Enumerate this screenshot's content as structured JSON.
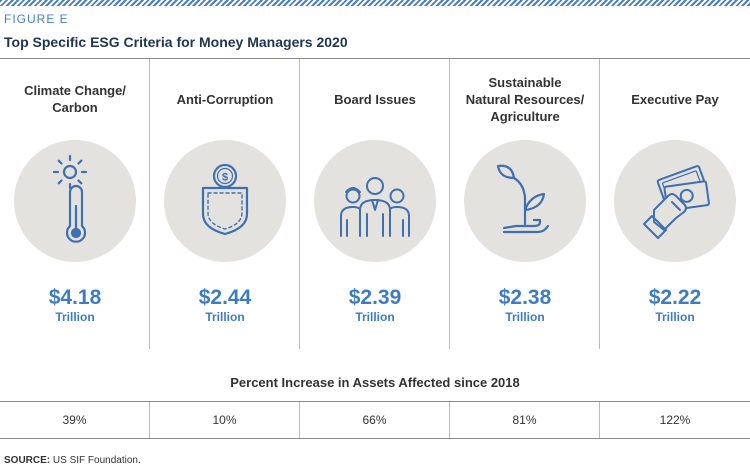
{
  "figure_label": "FIGURE E",
  "title": "Top Specific ESG Criteria for Money Managers 2020",
  "chart_data": {
    "type": "table",
    "title": "Top Specific ESG Criteria for Money Managers 2020",
    "categories": [
      "Climate Change/\nCarbon",
      "Anti-Corruption",
      "Board Issues",
      "Sustainable\nNatural Resources/\nAgriculture",
      "Executive Pay"
    ],
    "values_display": [
      "$4.18",
      "$2.44",
      "$2.39",
      "$2.38",
      "$2.22"
    ],
    "values": [
      4.18,
      2.44,
      2.39,
      2.38,
      2.22
    ],
    "unit": "Trillion",
    "percent_title": "Percent Increase in Assets Affected since 2018",
    "percent_increase_display": [
      "39%",
      "10%",
      "66%",
      "81%",
      "122%"
    ],
    "percent_increase": [
      39,
      10,
      66,
      81,
      122
    ]
  },
  "icons": [
    "thermometer-sun-icon",
    "pocket-coin-icon",
    "people-group-icon",
    "sprout-hand-icon",
    "hand-money-icon"
  ],
  "colors": {
    "accent": "#3e7cc2",
    "icon_stroke": "#3f6fb0",
    "circle_bg": "#e4e2de",
    "title": "#1f3552"
  },
  "source_label": "SOURCE:",
  "source_text": "US SIF Foundation."
}
